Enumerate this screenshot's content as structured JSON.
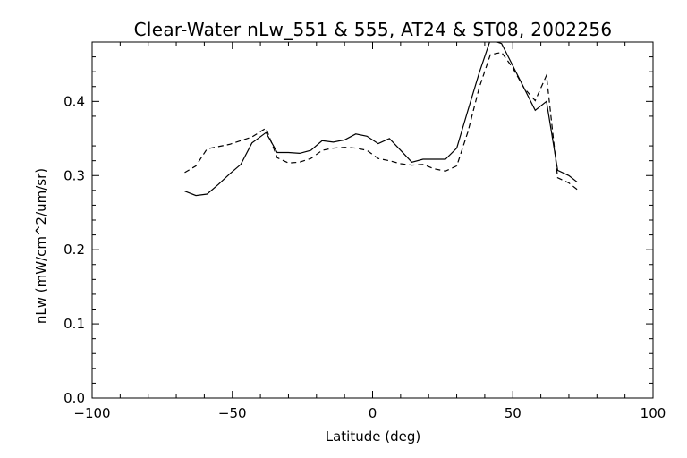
{
  "chart_data": {
    "type": "line",
    "title": "Clear-Water nLw_551 & 555, AT24 & ST08, 2002256",
    "xlabel": "Latitude (deg)",
    "ylabel": "nLw (mW/cm^2/um/sr)",
    "xlim": [
      -100,
      100
    ],
    "ylim": [
      0.0,
      0.48
    ],
    "xticks": [
      -100,
      -50,
      0,
      50,
      100
    ],
    "xtick_labels": [
      "−100",
      "−50",
      "0",
      "50",
      "100"
    ],
    "yticks": [
      0.0,
      0.1,
      0.2,
      0.3,
      0.4
    ],
    "ytick_labels": [
      "0.0",
      "0.1",
      "0.2",
      "0.3",
      "0.4"
    ],
    "grid": false,
    "legend": "none",
    "series": [
      {
        "style": "solid",
        "color": "#000000",
        "x": [
          -67,
          -63,
          -59,
          -55,
          -51,
          -47,
          -43,
          -38,
          -34,
          -30,
          -26,
          -22,
          -18,
          -14,
          -10,
          -6,
          -2,
          2,
          6,
          10,
          14,
          18,
          22,
          26,
          30,
          34,
          38,
          42,
          46,
          50,
          54,
          58,
          62,
          66,
          70,
          73
        ],
        "y": [
          0.279,
          0.273,
          0.275,
          0.288,
          0.302,
          0.315,
          0.344,
          0.358,
          0.331,
          0.331,
          0.33,
          0.334,
          0.347,
          0.345,
          0.348,
          0.356,
          0.353,
          0.343,
          0.35,
          0.334,
          0.318,
          0.322,
          0.322,
          0.322,
          0.337,
          0.388,
          0.438,
          0.483,
          0.478,
          0.448,
          0.418,
          0.388,
          0.4,
          0.307,
          0.3,
          0.291
        ]
      },
      {
        "style": "dashed",
        "color": "#000000",
        "x": [
          -67,
          -63,
          -59,
          -55,
          -51,
          -47,
          -43,
          -38,
          -34,
          -30,
          -26,
          -22,
          -18,
          -14,
          -10,
          -6,
          -2,
          2,
          6,
          10,
          14,
          18,
          22,
          26,
          30,
          34,
          38,
          42,
          46,
          50,
          54,
          58,
          62,
          66,
          70,
          73
        ],
        "y": [
          0.304,
          0.313,
          0.336,
          0.339,
          0.342,
          0.347,
          0.352,
          0.364,
          0.324,
          0.317,
          0.318,
          0.323,
          0.334,
          0.337,
          0.338,
          0.337,
          0.334,
          0.323,
          0.32,
          0.316,
          0.314,
          0.315,
          0.309,
          0.306,
          0.313,
          0.359,
          0.418,
          0.463,
          0.466,
          0.445,
          0.418,
          0.401,
          0.435,
          0.297,
          0.29,
          0.281
        ]
      }
    ]
  }
}
